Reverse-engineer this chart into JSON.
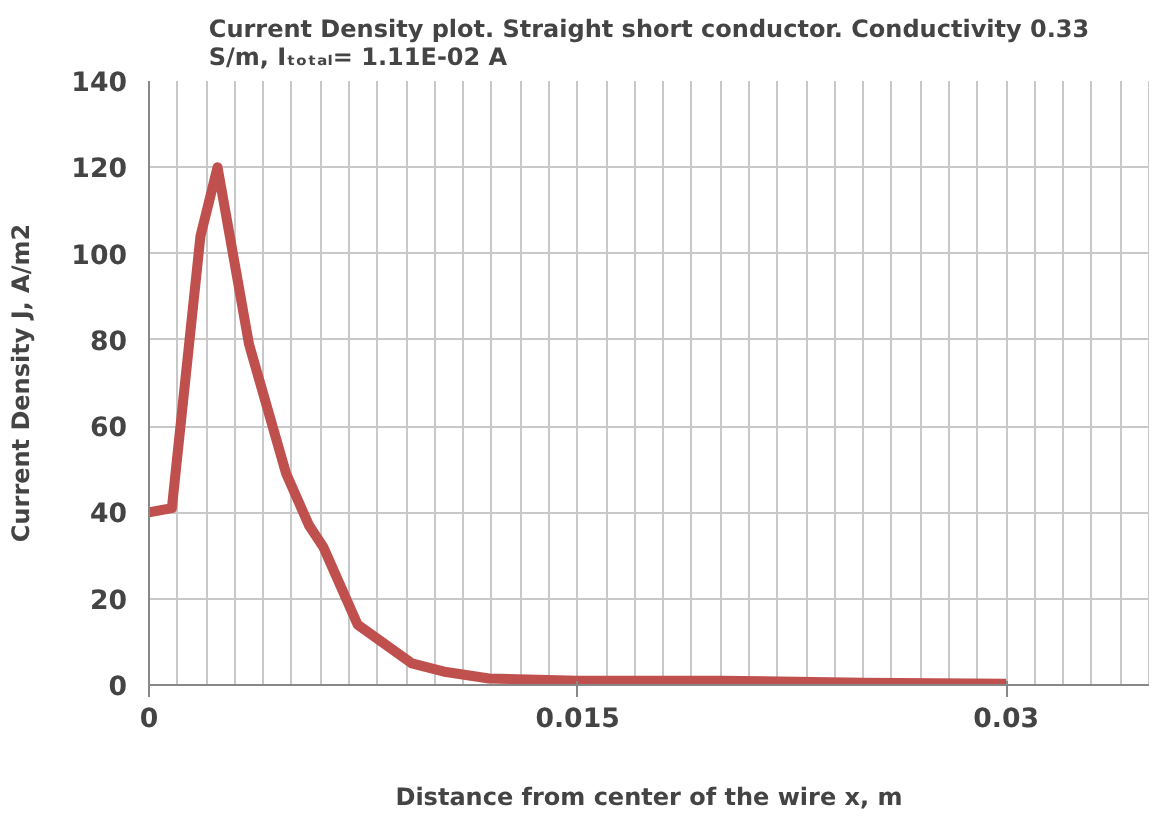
{
  "chart_data": {
    "type": "line",
    "title": "Current Density plot. Straight short conductor. Conductivity 0.33\nS/m, Iₜₒₜₐₗ= 1.11E-02 A",
    "xlabel": "Distance from center of the wire x, m",
    "ylabel": "Current Density J, A/m2",
    "x": [
      0,
      0.0008,
      0.0018,
      0.0024,
      0.0035,
      0.0048,
      0.0056,
      0.0061,
      0.0073,
      0.0092,
      0.0104,
      0.0119,
      0.015,
      0.02,
      0.025,
      0.03
    ],
    "series": [
      {
        "color": "#c0504d",
        "values": [
          40,
          41,
          104,
          120,
          79,
          49,
          37,
          32,
          14,
          5,
          3,
          1.5,
          1,
          1,
          0.5,
          0.3
        ]
      }
    ],
    "xlim": [
      0,
      0.035
    ],
    "ylim": [
      0,
      140
    ],
    "xticks": [
      0,
      0.015,
      0.03
    ],
    "yticks": [
      0,
      20,
      40,
      60,
      80,
      100,
      120,
      140
    ],
    "grid": true,
    "marker": "none",
    "line_style": "solid"
  }
}
